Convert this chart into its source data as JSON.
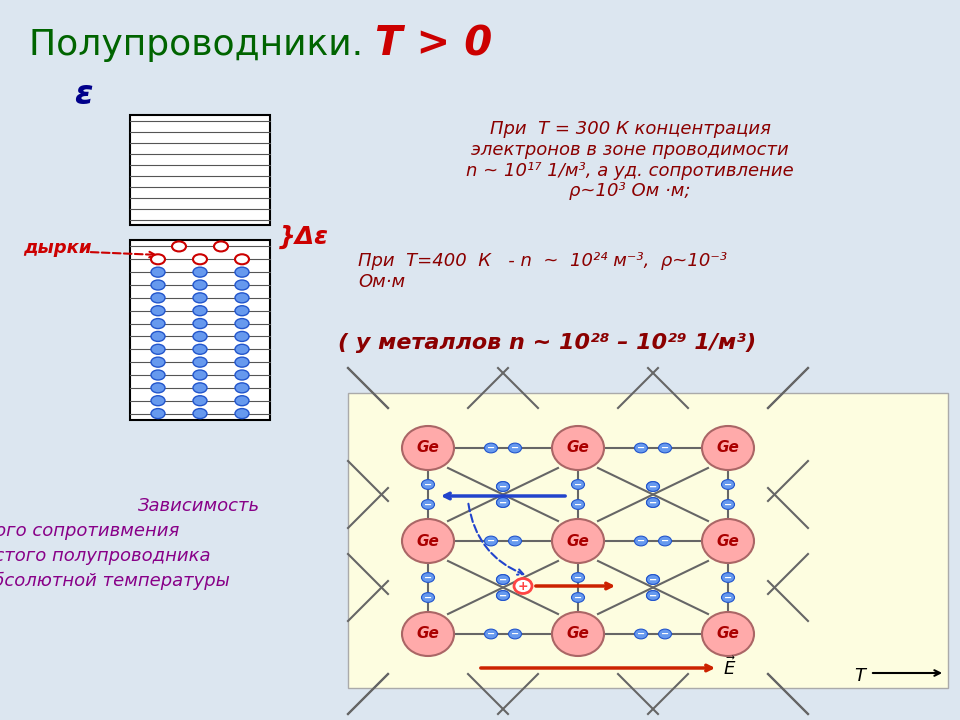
{
  "title_part1": "Полупроводники. ",
  "title_part2": "Т > 0",
  "title_color1": "#006400",
  "title_color2": "#cc0000",
  "title_fontsize": 26,
  "bg_color": "#dce6f0",
  "epsilon_label": "ε",
  "epsilon_color": "#00008B",
  "dyrki_label": "дырки",
  "dyrki_color": "#cc0000",
  "delta_eps_label": "}Δε",
  "delta_eps_color": "#cc0000",
  "text1": "При  Т = 300 К концентрация\nэлектронов в зоне проводимости\nn ~ 10¹⁷ 1/м³, а уд. сопротивление\nρ~10³ Ом ·м;",
  "text2": "При  Т=400  К   - n  ~  10²⁴ м⁻³,  ρ~10⁻³\nОм·м",
  "text3": "( у металлов n ~ 10²⁸ – 10²⁹ 1/м³)",
  "text_color": "#8b0000",
  "zavisimost_lines": [
    "Зависимость",
    "удельного сопротивмения",
    "чистого полупроводника",
    "от абсолютной температуры"
  ],
  "zavisimost_color": "#880088",
  "ge_color": "#ffaaaa",
  "ge_edge": "#aa6666",
  "electron_color": "#6699ee",
  "electron_edge": "#2255cc",
  "bond_color": "#666666",
  "img_bg": "#fdfde0",
  "blue_arrow_color": "#2244cc",
  "red_arrow_color": "#cc2200",
  "hole_color": "#ff4444"
}
